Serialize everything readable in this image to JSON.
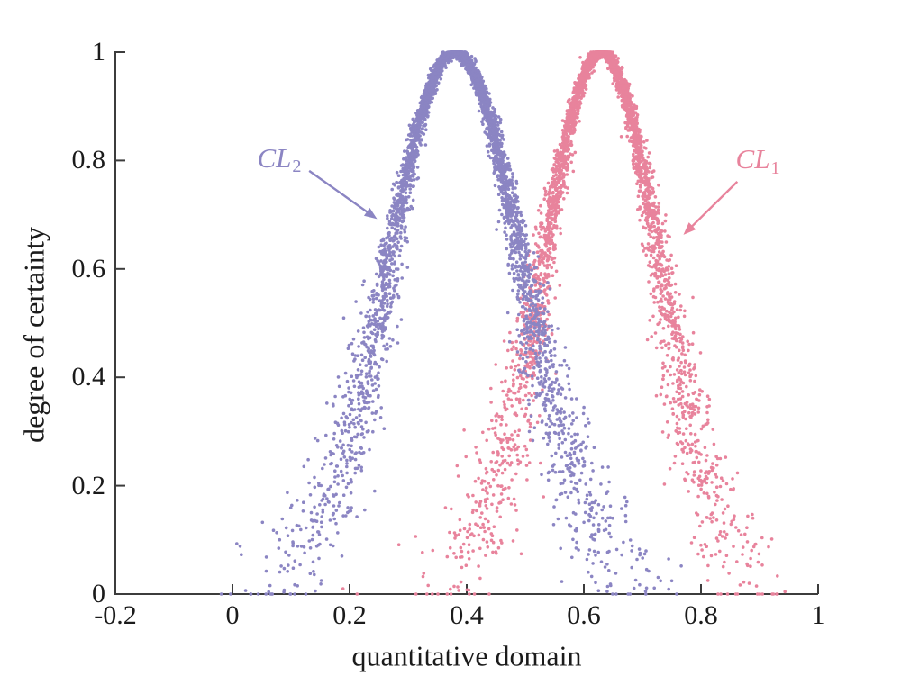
{
  "chart_data": {
    "type": "scatter",
    "title": "",
    "xlabel": "quantitative domain",
    "ylabel": "degree of certainty",
    "xlim": [
      -0.2,
      1
    ],
    "ylim": [
      0,
      1
    ],
    "x_ticks": [
      -0.2,
      0,
      0.2,
      0.4,
      0.6,
      0.8,
      1
    ],
    "x_tick_labels": [
      "-0.2",
      "0",
      "0.2",
      "0.4",
      "0.6",
      "0.8",
      "1"
    ],
    "y_ticks": [
      0,
      0.2,
      0.4,
      0.6,
      0.8,
      1
    ],
    "y_tick_labels": [
      "0",
      "0.2",
      "0.4",
      "0.6",
      "0.8",
      "1"
    ],
    "grid": false,
    "legend_position": "inline-annotations",
    "background": "#ffffff",
    "axis_color": "#3c3c3c",
    "text_color": "#1b1b1b",
    "seed": 1337,
    "point_radius_px": 1.8,
    "jitter": {
      "x_base": 0.004,
      "x_scale": 0.03,
      "y_base": 0.004,
      "y_scale": 0.045,
      "power": 1.5
    },
    "series": [
      {
        "name": "CL1",
        "label": "CL",
        "subscript": "1",
        "color": "#E8839C",
        "distribution": "gaussian-membership",
        "center": 0.63,
        "sigma": 0.1,
        "peak": 1,
        "n_points": 3400,
        "annotation": {
          "label_x": 0.897,
          "label_y": 0.799,
          "arrow": {
            "x1": 0.862,
            "y1": 0.761,
            "x2": 0.77,
            "y2": 0.663
          }
        }
      },
      {
        "name": "CL2",
        "label": "CL",
        "subscript": "2",
        "color": "#8B85C3",
        "distribution": "gaussian-membership",
        "center": 0.38,
        "sigma": 0.115,
        "peak": 1,
        "n_points": 4000,
        "annotation": {
          "label_x": 0.08,
          "label_y": 0.801,
          "arrow": {
            "x1": 0.131,
            "y1": 0.781,
            "x2": 0.247,
            "y2": 0.692
          }
        }
      }
    ]
  }
}
